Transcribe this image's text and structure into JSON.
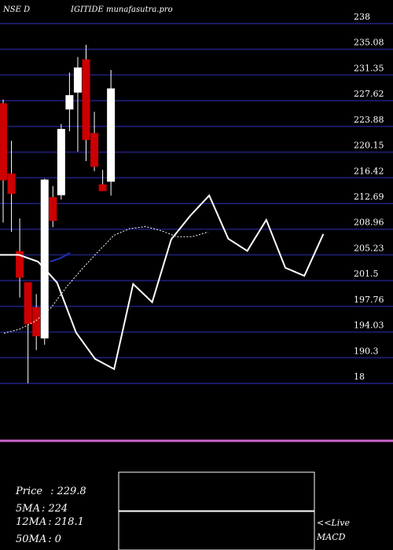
{
  "chart_data": {
    "type": "candlestick",
    "title_left": "NSE D",
    "title_right": "IGITIDE munafasutra.pro",
    "y_axis_labels": [
      "238",
      "235.08",
      "231.35",
      "227.62",
      "223.88",
      "220.15",
      "216.42",
      "212.69",
      "208.96",
      "205.23",
      "201.5",
      "197.76",
      "194.03",
      "190.3",
      "18"
    ],
    "ylim": [
      186.57,
      239.86
    ],
    "grid": true,
    "candles": [
      {
        "o": 228.0,
        "h": 228.6,
        "l": 210.4,
        "c": 216.7
      },
      {
        "o": 217.6,
        "h": 222.5,
        "l": 209.0,
        "c": 214.7
      },
      {
        "o": 206.1,
        "h": 211.0,
        "l": 199.3,
        "c": 202.3
      },
      {
        "o": 201.5,
        "h": 201.5,
        "l": 186.6,
        "c": 195.4
      },
      {
        "o": 197.8,
        "h": 199.8,
        "l": 191.5,
        "c": 193.6
      },
      {
        "o": 193.3,
        "h": 216.9,
        "l": 192.3,
        "c": 216.7
      },
      {
        "o": 214.1,
        "h": 215.8,
        "l": 209.7,
        "c": 210.7
      },
      {
        "o": 214.5,
        "h": 225.0,
        "l": 213.8,
        "c": 224.2
      },
      {
        "o": 227.2,
        "h": 232.6,
        "l": 223.9,
        "c": 229.2
      },
      {
        "o": 229.7,
        "h": 234.9,
        "l": 220.9,
        "c": 233.3
      },
      {
        "o": 234.5,
        "h": 236.7,
        "l": 219.5,
        "c": 222.7
      },
      {
        "o": 223.6,
        "h": 226.8,
        "l": 218.0,
        "c": 218.7
      },
      {
        "o": 216.0,
        "h": 218.2,
        "l": 215.1,
        "c": 215.1
      },
      {
        "o": 216.5,
        "h": 233.0,
        "l": 214.4,
        "c": 230.2
      }
    ],
    "ma_white_dotted": [
      194.0,
      194.6,
      195.8,
      197.8,
      200.9,
      203.6,
      206.1,
      208.5,
      209.5,
      209.8,
      209.2,
      208.3,
      208.3,
      209.0
    ],
    "ma_blue": [
      null,
      null,
      null,
      null,
      null,
      204.6,
      205.1,
      205.9
    ],
    "ma_white_solid": [
      205.6,
      205.6,
      204.6,
      201.5,
      194.1,
      190.2,
      188.7,
      201.3,
      198.6,
      207.9,
      211.4,
      214.4,
      208.0,
      206.2,
      210.8,
      203.7,
      202.5,
      208.7
    ],
    "info": {
      "price_label": "Price",
      "price_value": "229.8",
      "ma5_label": "5MA",
      "ma5_value": "224",
      "ma12_label": "12MA",
      "ma12_value": "218.1",
      "ma50_label": "50MA",
      "ma50_value": "0"
    },
    "macd": {
      "live_label": "<<Live",
      "label": "MACD",
      "line_value": 0.5
    },
    "colors": {
      "background": "#000000",
      "gridline": "#1a1a66",
      "up_candle": "#ffffff",
      "down_candle": "#cc0000",
      "ma_blue": "#2233bb",
      "zero_line": "#cc66cc",
      "macd_line": "#cc66cc"
    }
  }
}
